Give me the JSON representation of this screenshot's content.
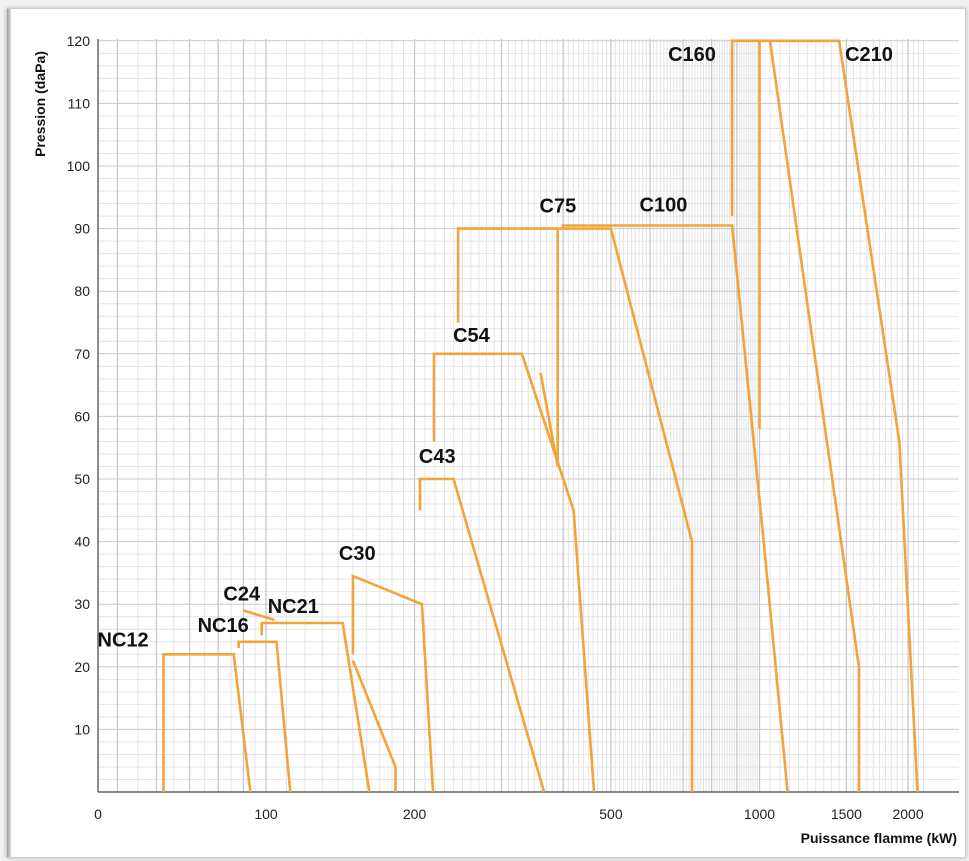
{
  "chart_data": {
    "type": "line",
    "title": "",
    "xlabel": "Puissance flamme (kW)",
    "ylabel": "Pression (daPa)",
    "xscale": "log",
    "x_ticks": [
      "0",
      "100",
      "200",
      "500",
      "1000",
      "1500",
      "2000"
    ],
    "y_ticks": [
      "10",
      "20",
      "30",
      "40",
      "50",
      "60",
      "70",
      "80",
      "90",
      "100",
      "110",
      "120"
    ],
    "ylim": [
      0,
      120
    ],
    "grid": true,
    "line_color": "#f2a33a",
    "series": [
      {
        "name": "NC12",
        "points": [
          [
            62,
            0
          ],
          [
            62,
            22
          ],
          [
            86,
            22
          ],
          [
            93,
            0
          ]
        ]
      },
      {
        "name": "NC16",
        "points": [
          [
            88,
            23
          ],
          [
            88,
            24
          ],
          [
            105,
            24
          ],
          [
            112,
            0
          ]
        ]
      },
      {
        "name": "C24",
        "points": [
          [
            90,
            29
          ],
          [
            104,
            27.5
          ]
        ]
      },
      {
        "name": "NC21",
        "points": [
          [
            98,
            25
          ],
          [
            98,
            27
          ],
          [
            143,
            27
          ],
          [
            162,
            0
          ]
        ]
      },
      {
        "name": "C30",
        "points": [
          [
            150,
            22
          ],
          [
            150,
            34.5
          ],
          [
            207,
            30
          ],
          [
            218,
            0
          ]
        ]
      },
      {
        "name": "C30-branch",
        "points": [
          [
            150,
            21
          ],
          [
            183,
            4
          ],
          [
            183,
            0
          ]
        ]
      },
      {
        "name": "C43",
        "points": [
          [
            205,
            45
          ],
          [
            205,
            50
          ],
          [
            240,
            50
          ],
          [
            366,
            0
          ]
        ]
      },
      {
        "name": "C54",
        "points": [
          [
            219,
            56
          ],
          [
            219,
            70
          ],
          [
            330,
            70
          ],
          [
            420,
            45
          ],
          [
            462,
            0
          ]
        ]
      },
      {
        "name": "C54-branch",
        "points": [
          [
            390,
            52
          ],
          [
            360,
            67
          ]
        ]
      },
      {
        "name": "C75",
        "points": [
          [
            245,
            75
          ],
          [
            245,
            90
          ],
          [
            500,
            90
          ],
          [
            730,
            40
          ],
          [
            730,
            0
          ]
        ]
      },
      {
        "name": "C75-branch",
        "points": [
          [
            390,
            52
          ],
          [
            390,
            90
          ]
        ]
      },
      {
        "name": "C100",
        "points": [
          [
            400,
            90
          ],
          [
            400,
            90.5
          ],
          [
            880,
            90.5
          ],
          [
            1020,
            40
          ],
          [
            1140,
            0
          ]
        ]
      },
      {
        "name": "C160",
        "points": [
          [
            880,
            92
          ],
          [
            880,
            120
          ],
          [
            1050,
            120
          ],
          [
            1590,
            20
          ],
          [
            1590,
            0
          ]
        ]
      },
      {
        "name": "C160-branch",
        "points": [
          [
            1000,
            58
          ],
          [
            1000,
            120
          ]
        ]
      },
      {
        "name": "C210",
        "points": [
          [
            1050,
            120
          ],
          [
            1450,
            120
          ],
          [
            1920,
            56
          ],
          [
            2090,
            0
          ]
        ]
      }
    ],
    "labels": [
      {
        "text": "NC12",
        "x": 62,
        "y": 22
      },
      {
        "text": "NC16",
        "x": 88,
        "y": 24
      },
      {
        "text": "C24",
        "x": 90,
        "y": 29
      },
      {
        "text": "NC21",
        "x": 98,
        "y": 27
      },
      {
        "text": "C30",
        "x": 150,
        "y": 34.5
      },
      {
        "text": "C43",
        "x": 205,
        "y": 50
      },
      {
        "text": "C54",
        "x": 245,
        "y": 70
      },
      {
        "text": "C75",
        "x": 310,
        "y": 90
      },
      {
        "text": "C100",
        "x": 630,
        "y": 90.5
      },
      {
        "text": "C160",
        "x": 880,
        "y": 120
      },
      {
        "text": "C210",
        "x": 1450,
        "y": 120
      }
    ]
  }
}
